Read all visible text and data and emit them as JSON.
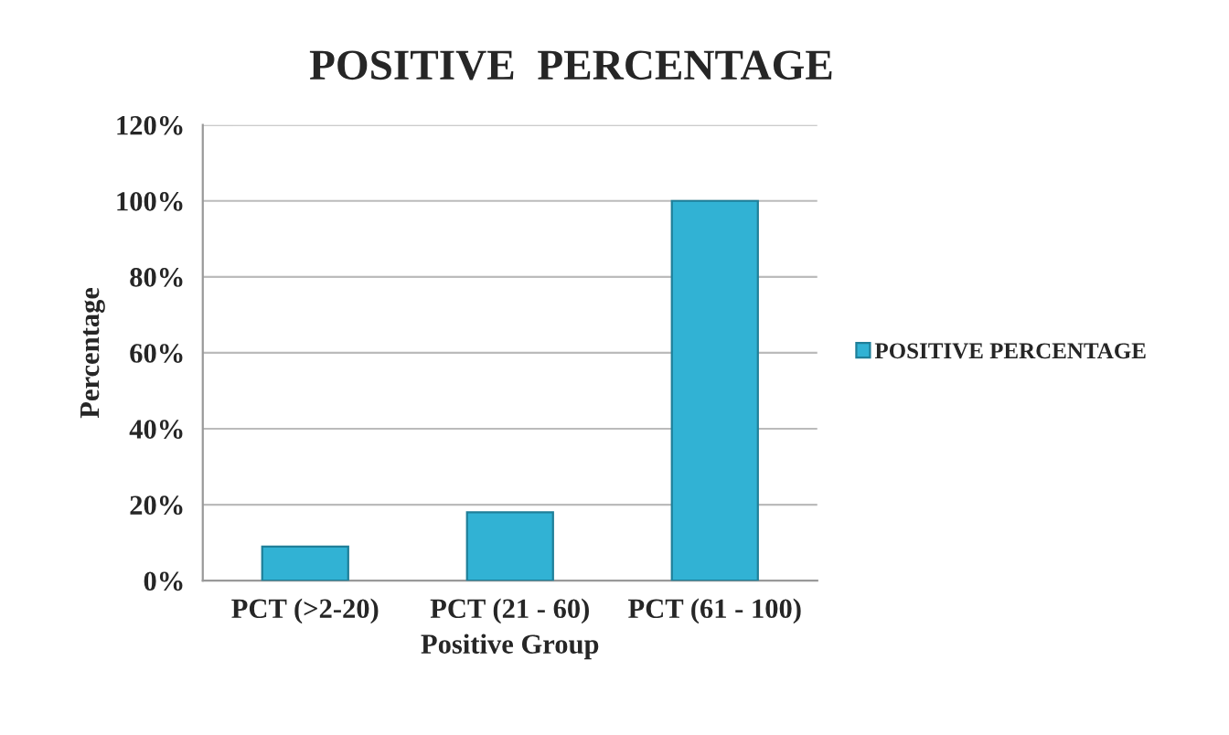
{
  "chart_data": {
    "type": "bar",
    "title": "POSITIVE  PERCENTAGE",
    "xlabel": "Positive Group",
    "ylabel": "Percentage",
    "categories": [
      "PCT (>2-20)",
      "PCT (21 - 60)",
      "PCT (61 - 100)"
    ],
    "series": [
      {
        "name": "POSITIVE PERCENTAGE",
        "color": "#31b2d4",
        "values": [
          9,
          18,
          100
        ]
      }
    ],
    "ylim": [
      0,
      120
    ],
    "yticks": [
      {
        "value": 0,
        "label": "0%"
      },
      {
        "value": 20,
        "label": "20%"
      },
      {
        "value": 40,
        "label": "40%"
      },
      {
        "value": 60,
        "label": "60%"
      },
      {
        "value": 80,
        "label": "80%"
      },
      {
        "value": 100,
        "label": "100%"
      },
      {
        "value": 120,
        "label": "120%"
      }
    ],
    "grid": "y",
    "legend": "right"
  }
}
